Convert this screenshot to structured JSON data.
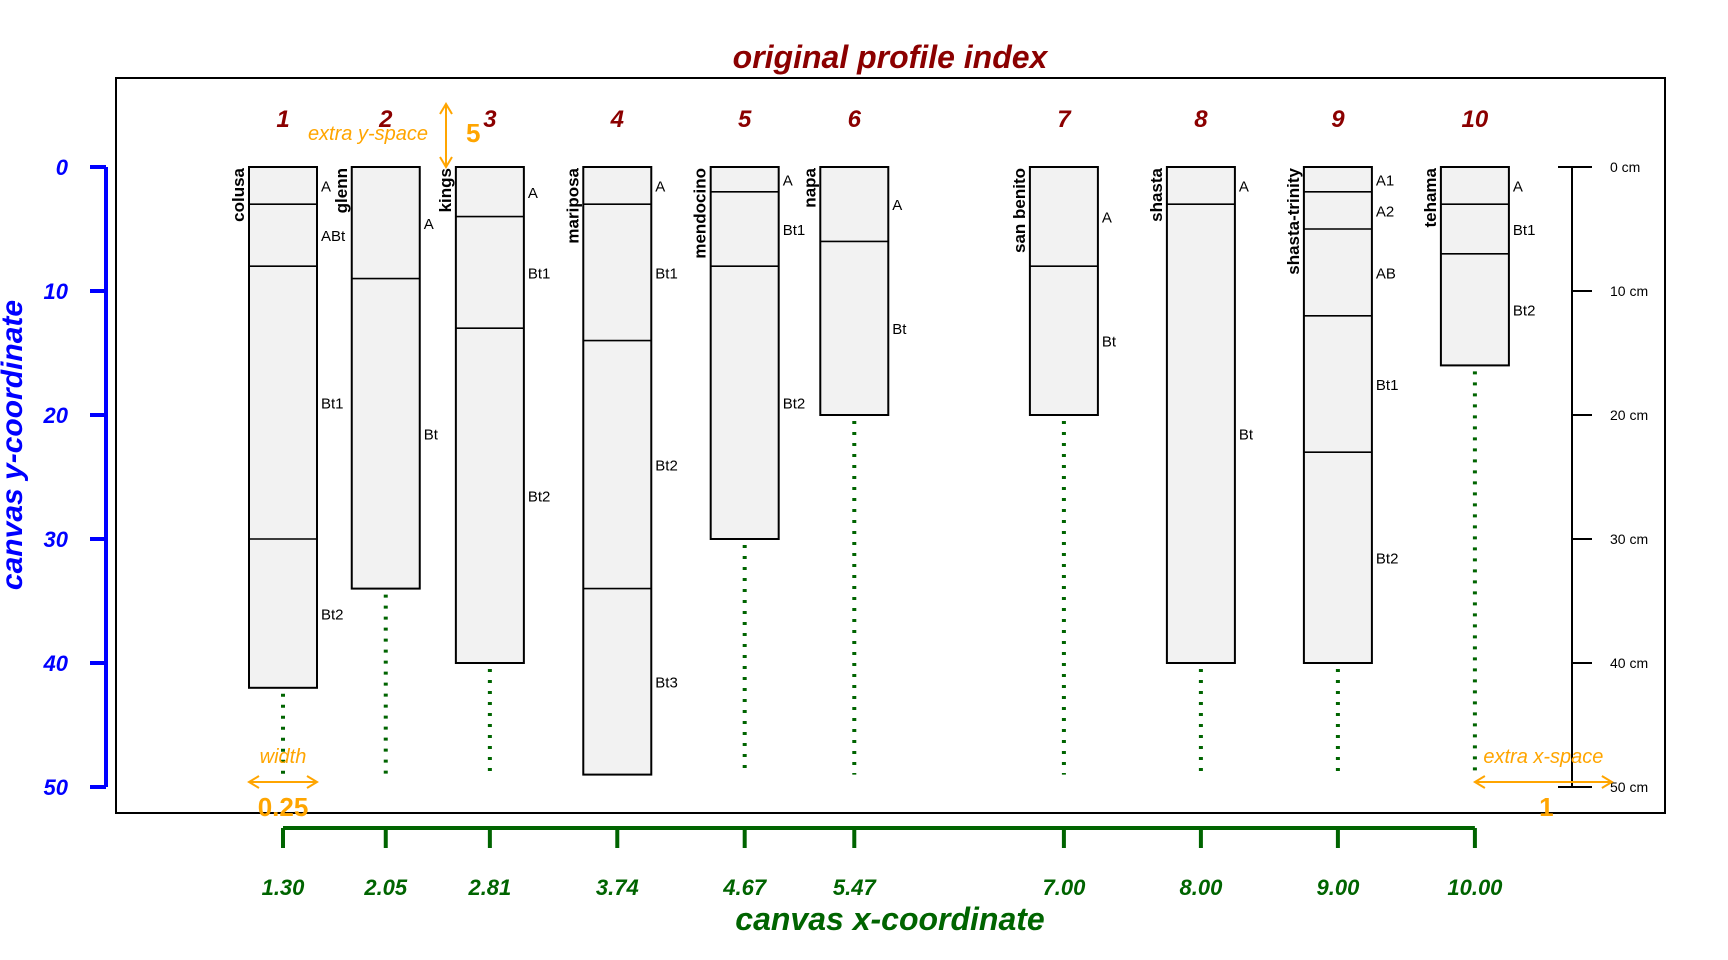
{
  "chart_data": {
    "type": "soil-profile-sketch",
    "title": "original profile index",
    "xlabel": "canvas x-coordinate",
    "ylabel": "canvas y-coordinate",
    "ylim": [
      0,
      50
    ],
    "yticks": [
      "0",
      "10",
      "20",
      "30",
      "40",
      "50"
    ],
    "max_depth": 49,
    "profiles": [
      {
        "index": "1",
        "x": 1.3,
        "x_label": "1.30",
        "name": "colusa",
        "bottom": 42,
        "horizons": [
          {
            "name": "A",
            "top": 0,
            "bottom": 3
          },
          {
            "name": "ABt",
            "top": 3,
            "bottom": 8
          },
          {
            "name": "Bt1",
            "top": 8,
            "bottom": 30
          },
          {
            "name": "Bt2",
            "top": 30,
            "bottom": 42
          }
        ]
      },
      {
        "index": "2",
        "x": 2.05,
        "x_label": "2.05",
        "name": "glenn",
        "bottom": 34,
        "horizons": [
          {
            "name": "A",
            "top": 0,
            "bottom": 9
          },
          {
            "name": "Bt",
            "top": 9,
            "bottom": 34
          }
        ]
      },
      {
        "index": "3",
        "x": 2.81,
        "x_label": "2.81",
        "name": "kings",
        "bottom": 40,
        "horizons": [
          {
            "name": "A",
            "top": 0,
            "bottom": 4
          },
          {
            "name": "Bt1",
            "top": 4,
            "bottom": 13
          },
          {
            "name": "Bt2",
            "top": 13,
            "bottom": 40
          }
        ]
      },
      {
        "index": "4",
        "x": 3.74,
        "x_label": "3.74",
        "name": "mariposa",
        "bottom": 49,
        "horizons": [
          {
            "name": "A",
            "top": 0,
            "bottom": 3
          },
          {
            "name": "Bt1",
            "top": 3,
            "bottom": 14
          },
          {
            "name": "Bt2",
            "top": 14,
            "bottom": 34
          },
          {
            "name": "Bt3",
            "top": 34,
            "bottom": 49
          }
        ]
      },
      {
        "index": "5",
        "x": 4.67,
        "x_label": "4.67",
        "name": "mendocino",
        "bottom": 30,
        "horizons": [
          {
            "name": "A",
            "top": 0,
            "bottom": 2
          },
          {
            "name": "Bt1",
            "top": 2,
            "bottom": 8
          },
          {
            "name": "Bt2",
            "top": 8,
            "bottom": 30
          }
        ]
      },
      {
        "index": "6",
        "x": 5.47,
        "x_label": "5.47",
        "name": "napa",
        "bottom": 20,
        "horizons": [
          {
            "name": "A",
            "top": 0,
            "bottom": 6
          },
          {
            "name": "Bt",
            "top": 6,
            "bottom": 20
          }
        ]
      },
      {
        "index": "7",
        "x": 7.0,
        "x_label": "7.00",
        "name": "san benito",
        "bottom": 20,
        "horizons": [
          {
            "name": "A",
            "top": 0,
            "bottom": 8
          },
          {
            "name": "Bt",
            "top": 8,
            "bottom": 20
          }
        ]
      },
      {
        "index": "8",
        "x": 8.0,
        "x_label": "8.00",
        "name": "shasta",
        "bottom": 40,
        "horizons": [
          {
            "name": "A",
            "top": 0,
            "bottom": 3
          },
          {
            "name": "Bt",
            "top": 3,
            "bottom": 40
          }
        ]
      },
      {
        "index": "9",
        "x": 9.0,
        "x_label": "9.00",
        "name": "shasta-trinity",
        "bottom": 40,
        "horizons": [
          {
            "name": "A1",
            "top": 0,
            "bottom": 2
          },
          {
            "name": "A2",
            "top": 2,
            "bottom": 5
          },
          {
            "name": "AB",
            "top": 5,
            "bottom": 12
          },
          {
            "name": "Bt1",
            "top": 12,
            "bottom": 23
          },
          {
            "name": "Bt2",
            "top": 23,
            "bottom": 40
          }
        ]
      },
      {
        "index": "10",
        "x": 10.0,
        "x_label": "10.00",
        "name": "tehama",
        "bottom": 16,
        "horizons": [
          {
            "name": "A",
            "top": 0,
            "bottom": 3
          },
          {
            "name": "Bt1",
            "top": 3,
            "bottom": 7
          },
          {
            "name": "Bt2",
            "top": 7,
            "bottom": 16
          }
        ]
      }
    ],
    "depth_axis": {
      "labels": [
        "0 cm",
        "10 cm",
        "20 cm",
        "30 cm",
        "40 cm",
        "50 cm"
      ],
      "values": [
        0,
        10,
        20,
        30,
        40,
        50
      ]
    },
    "annotations": {
      "width": {
        "label": "width",
        "value": "0.25"
      },
      "extra_y": {
        "label": "extra y-space",
        "value": "5"
      },
      "extra_x": {
        "label": "extra x-space",
        "value": "1"
      }
    },
    "colors": {
      "title": "#8b0000",
      "y_axis": "#0000ff",
      "x_axis": "#006400",
      "annotation": "#ffa500",
      "profile_fill": "#f2f2f2",
      "depth_line": "#006400"
    }
  }
}
